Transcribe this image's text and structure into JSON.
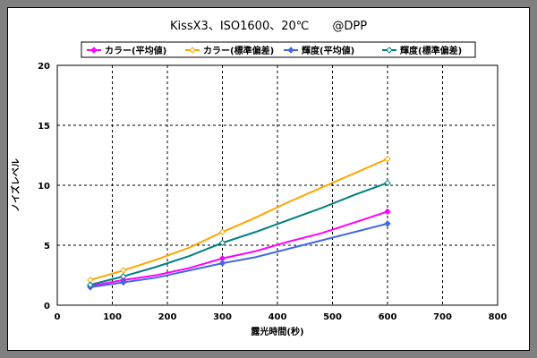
{
  "chart_data": {
    "type": "line",
    "title": "KissX3、ISO1600、20℃　　@DPP",
    "xlabel": "露光時間(秒)",
    "ylabel": "ノイズレベル",
    "xlim": [
      0,
      800
    ],
    "ylim": [
      0,
      20
    ],
    "x_ticks": [
      "0",
      "100",
      "200",
      "300",
      "400",
      "500",
      "600",
      "700",
      "800"
    ],
    "y_ticks": [
      "0",
      "5",
      "10",
      "15",
      "20"
    ],
    "grid": true,
    "legend_position": "top",
    "series": [
      {
        "name": "カラー(平均値)",
        "color": "#ff00ff",
        "marker": "diamond-filled",
        "points": [
          [
            60,
            1.6
          ],
          [
            120,
            2.1
          ],
          [
            180,
            2.5
          ],
          [
            240,
            3.1
          ],
          [
            300,
            3.9
          ],
          [
            360,
            4.5
          ],
          [
            420,
            5.3
          ],
          [
            480,
            6.0
          ],
          [
            540,
            6.9
          ],
          [
            600,
            7.8
          ]
        ]
      },
      {
        "name": "カラー(標準偏差)",
        "color": "#ffa500",
        "marker": "diamond-open",
        "points": [
          [
            60,
            2.1
          ],
          [
            120,
            2.9
          ],
          [
            180,
            3.8
          ],
          [
            240,
            4.8
          ],
          [
            300,
            6.1
          ],
          [
            360,
            7.3
          ],
          [
            420,
            8.6
          ],
          [
            480,
            9.8
          ],
          [
            540,
            11.0
          ],
          [
            600,
            12.2
          ]
        ]
      },
      {
        "name": "輝度(平均値)",
        "color": "#4169e1",
        "marker": "diamond-filled",
        "points": [
          [
            60,
            1.5
          ],
          [
            120,
            1.9
          ],
          [
            180,
            2.3
          ],
          [
            240,
            2.9
          ],
          [
            300,
            3.5
          ],
          [
            360,
            4.0
          ],
          [
            420,
            4.7
          ],
          [
            480,
            5.4
          ],
          [
            540,
            6.1
          ],
          [
            600,
            6.8
          ]
        ]
      },
      {
        "name": "輝度(標準偏差)",
        "color": "#008080",
        "marker": "diamond-open",
        "points": [
          [
            60,
            1.7
          ],
          [
            120,
            2.4
          ],
          [
            180,
            3.2
          ],
          [
            240,
            4.1
          ],
          [
            300,
            5.2
          ],
          [
            360,
            6.1
          ],
          [
            420,
            7.1
          ],
          [
            480,
            8.1
          ],
          [
            540,
            9.2
          ],
          [
            600,
            10.2
          ]
        ]
      }
    ]
  }
}
